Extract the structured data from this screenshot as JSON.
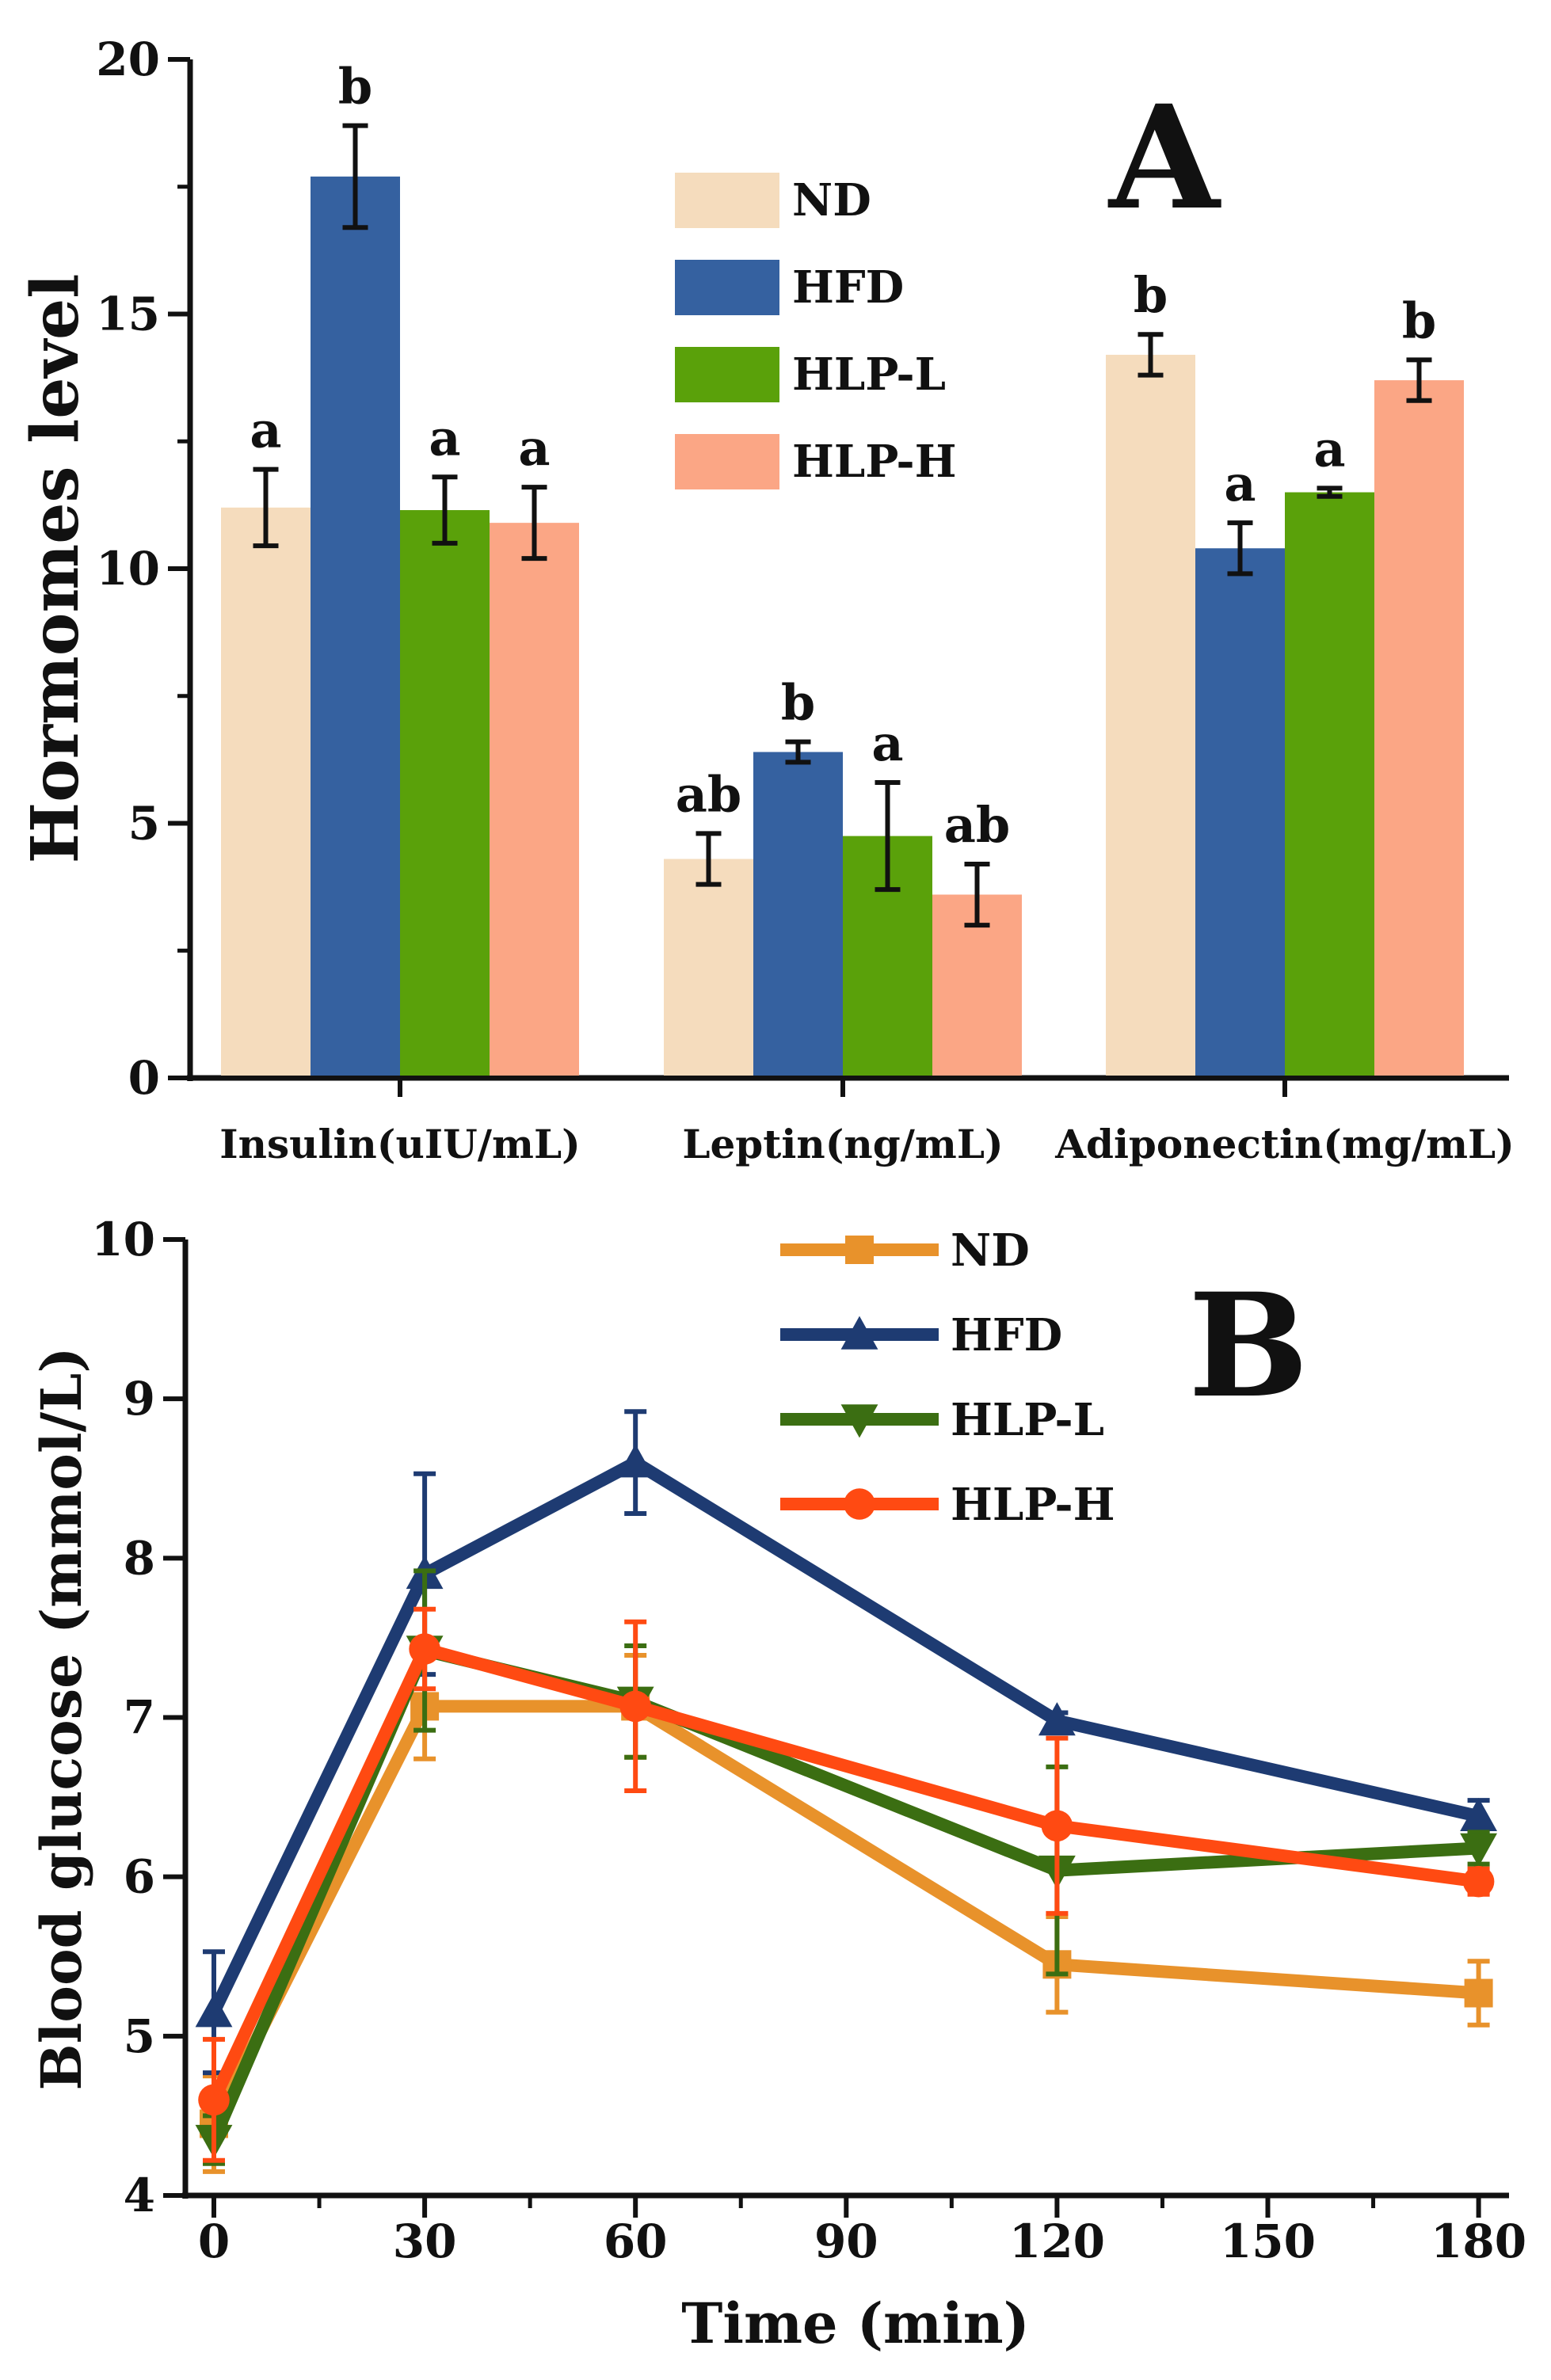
{
  "chart_data": [
    {
      "panel": "A",
      "type": "bar",
      "panel_label": "A",
      "ylabel": "Hormomes level",
      "xlabel": "",
      "ylim": [
        0,
        20
      ],
      "yticks": [
        0,
        5,
        10,
        15,
        20
      ],
      "categories": [
        "Insulin(uIU/mL)",
        "Leptin(ng/mL)",
        "Adiponectin(mg/mL)"
      ],
      "series": [
        {
          "name": "ND",
          "color": "#f5dcbd",
          "values": [
            11.2,
            4.3,
            14.2
          ],
          "errors": [
            0.75,
            0.5,
            0.4
          ],
          "letters": [
            "a",
            "ab",
            "b"
          ]
        },
        {
          "name": "HFD",
          "color": "#3561a0",
          "values": [
            17.7,
            6.4,
            10.4
          ],
          "errors": [
            1.0,
            0.2,
            0.5
          ],
          "letters": [
            "b",
            "b",
            "a"
          ]
        },
        {
          "name": "HLP-L",
          "color": "#5aa10a",
          "values": [
            11.15,
            4.75,
            11.5
          ],
          "errors": [
            0.65,
            1.05,
            0.08
          ],
          "letters": [
            "a",
            "a",
            "a"
          ]
        },
        {
          "name": "HLP-H",
          "color": "#fba685",
          "values": [
            10.9,
            3.6,
            13.7
          ],
          "errors": [
            0.7,
            0.6,
            0.4
          ],
          "letters": [
            "a",
            "ab",
            "b"
          ]
        }
      ],
      "legend_position": "top-center"
    },
    {
      "panel": "B",
      "type": "line",
      "panel_label": "B",
      "xlabel": "Time (min)",
      "ylabel": "Blood glucose (mmol/L)",
      "xlim": [
        -5,
        185
      ],
      "ylim": [
        4,
        10
      ],
      "xticks": [
        0,
        30,
        60,
        90,
        120,
        150,
        180
      ],
      "yticks": [
        4,
        5,
        6,
        7,
        8,
        9,
        10
      ],
      "x": [
        0,
        30,
        60,
        120,
        180
      ],
      "series": [
        {
          "name": "ND",
          "color": "#e8922b",
          "marker": "square",
          "values": [
            4.45,
            7.07,
            7.07,
            5.45,
            5.27
          ],
          "errors": [
            0.3,
            0.33,
            0.32,
            0.3,
            0.2
          ]
        },
        {
          "name": "HFD",
          "color": "#1e3b72",
          "marker": "triangle-up",
          "values": [
            5.15,
            7.9,
            8.6,
            6.98,
            6.38
          ],
          "errors": [
            0.38,
            0.63,
            0.32,
            0.05,
            0.1
          ]
        },
        {
          "name": "HLP-L",
          "color": "#3b6e12",
          "marker": "triangle-down",
          "values": [
            4.35,
            7.42,
            7.1,
            6.04,
            6.18
          ],
          "errors": [
            0.15,
            0.5,
            0.35,
            0.65,
            0.1
          ]
        },
        {
          "name": "HLP-H",
          "color": "#ff4a12",
          "marker": "circle",
          "values": [
            4.6,
            7.43,
            7.07,
            6.32,
            5.97
          ],
          "errors": [
            0.38,
            0.25,
            0.53,
            0.55,
            0.08
          ]
        }
      ],
      "legend_position": "top-center"
    }
  ]
}
